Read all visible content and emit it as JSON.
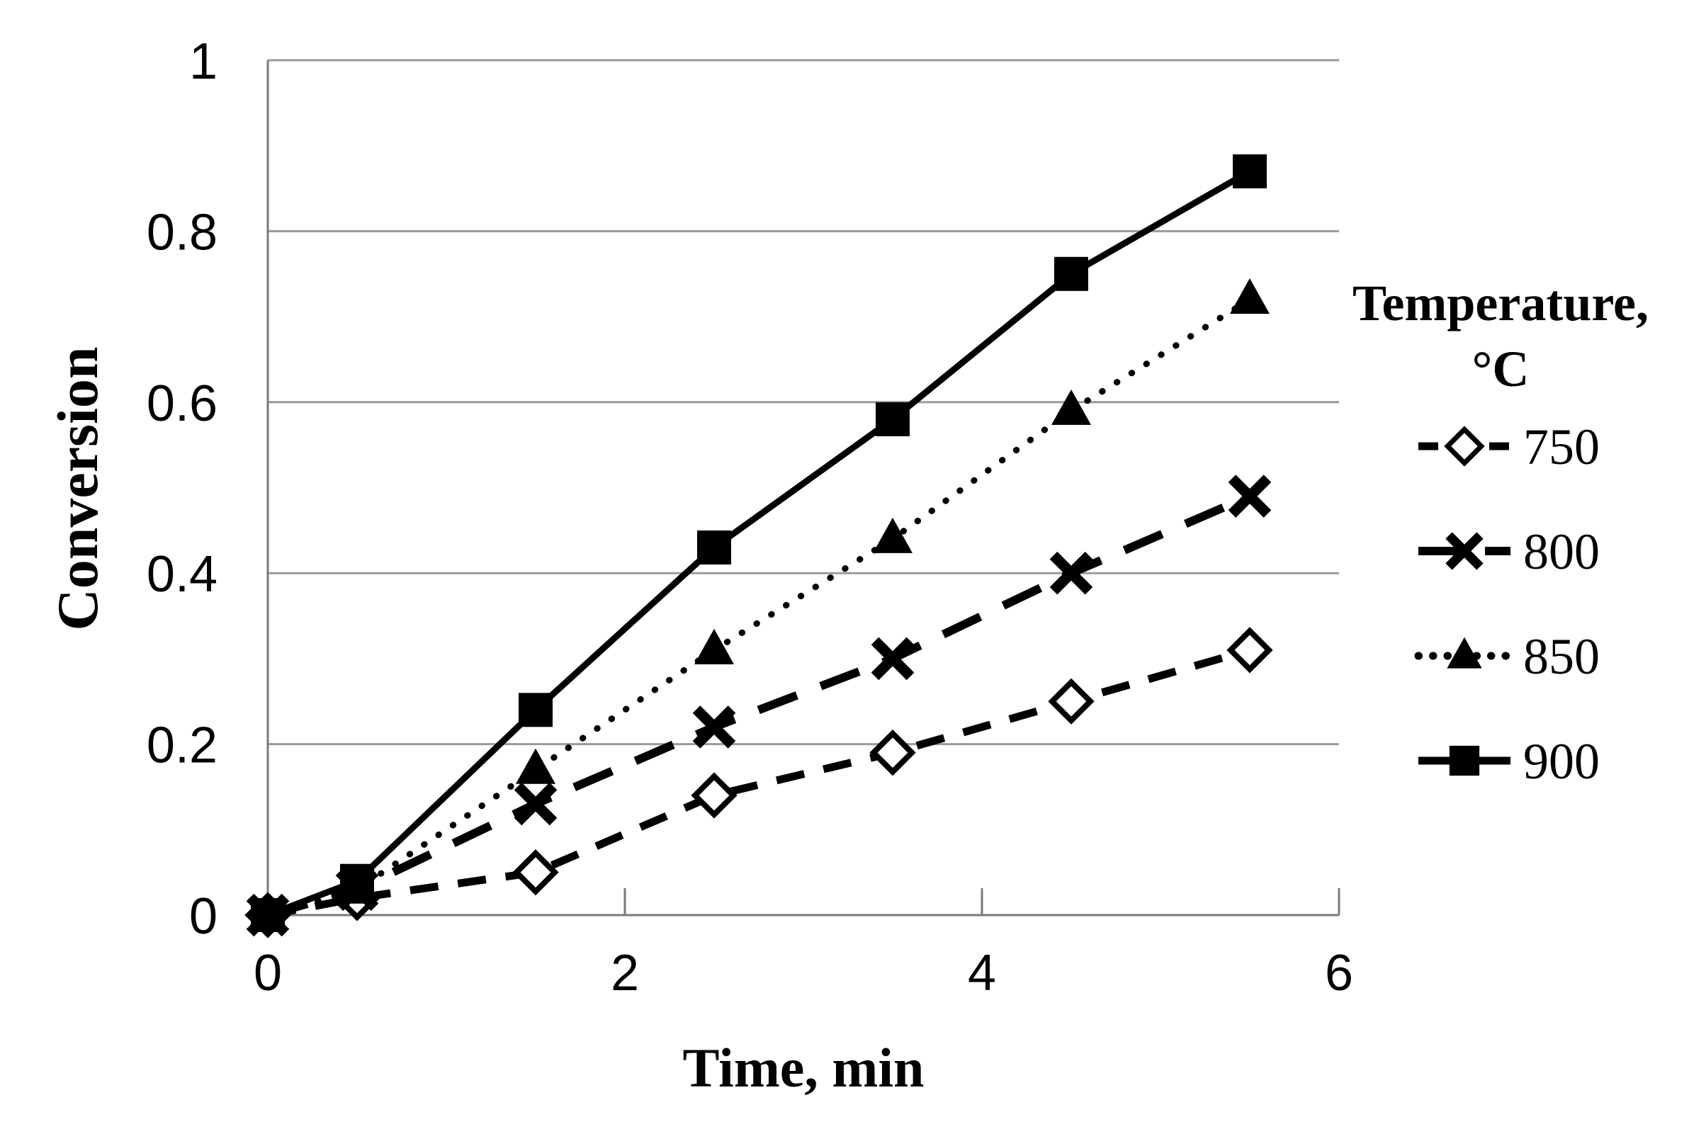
{
  "figure": {
    "background": "#ffffff",
    "text_color": "#000000",
    "gridline_color": "#9a9a9a",
    "axis_color": "#7a7a7a",
    "series_color": "#000000",
    "marker_fill_open": "#ffffff"
  },
  "chart_data": {
    "type": "line",
    "title": "",
    "xlabel": "Time, min",
    "ylabel": "Conversion",
    "xlim": [
      0,
      6
    ],
    "ylim": [
      0,
      1
    ],
    "xticks": [
      0,
      2,
      4,
      6
    ],
    "xtick_labels": [
      "0",
      "2",
      "4",
      "6"
    ],
    "yticks": [
      0,
      0.2,
      0.4,
      0.6,
      0.8,
      1
    ],
    "ytick_labels": [
      "0",
      "0.2",
      "0.4",
      "0.6",
      "0.8",
      "1"
    ],
    "grid": "horizontal-only",
    "legend_position": "right",
    "legend_title_lines": [
      "Temperature,",
      "°C"
    ],
    "x": [
      0,
      0.5,
      1.5,
      2.5,
      3.5,
      4.5,
      5.5
    ],
    "series": [
      {
        "name": "750",
        "legend_label": "750",
        "line_style": "dash",
        "marker": "diamond-open",
        "color": "#000000",
        "values": [
          0,
          0.02,
          0.05,
          0.14,
          0.19,
          0.25,
          0.31
        ]
      },
      {
        "name": "800",
        "legend_label": "800",
        "line_style": "longdash",
        "marker": "x",
        "color": "#000000",
        "values": [
          0,
          0.03,
          0.13,
          0.22,
          0.3,
          0.4,
          0.49
        ]
      },
      {
        "name": "850",
        "legend_label": "850",
        "line_style": "dot",
        "marker": "triangle-filled",
        "color": "#000000",
        "values": [
          0,
          0.03,
          0.17,
          0.31,
          0.44,
          0.59,
          0.72
        ]
      },
      {
        "name": "900",
        "legend_label": "900",
        "line_style": "solid",
        "marker": "square-filled",
        "color": "#000000",
        "values": [
          0,
          0.04,
          0.24,
          0.43,
          0.58,
          0.75,
          0.87
        ]
      }
    ]
  }
}
